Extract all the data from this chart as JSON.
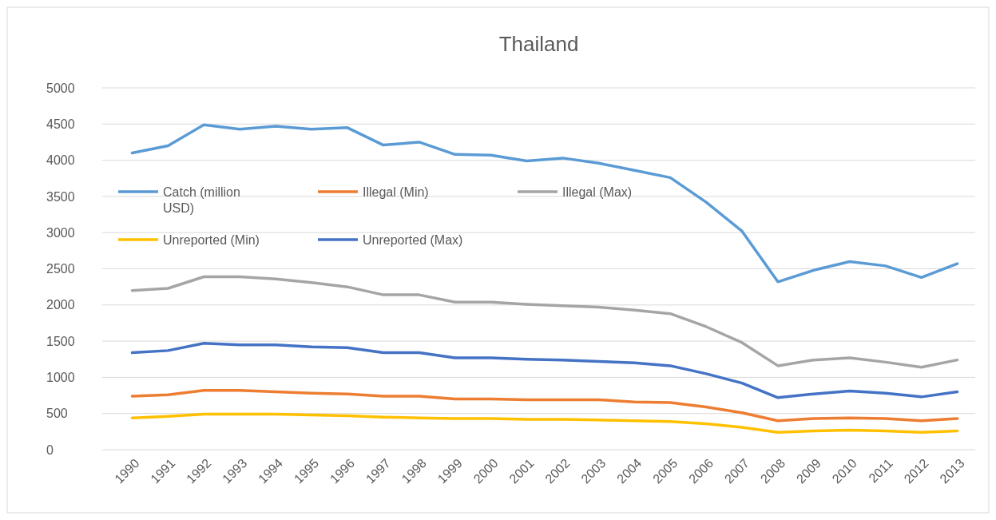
{
  "chart_data": {
    "type": "line",
    "title": "Thailand",
    "categories": [
      "1990",
      "1991",
      "1992",
      "1993",
      "1994",
      "1995",
      "1996",
      "1997",
      "1998",
      "1999",
      "2000",
      "2001",
      "2002",
      "2003",
      "2004",
      "2005",
      "2006",
      "2007",
      "2008",
      "2009",
      "2010",
      "2011",
      "2012",
      "2013"
    ],
    "series": [
      {
        "name": "Catch (million USD)",
        "color": "#5b9bd5",
        "values": [
          4100,
          4200,
          4490,
          4430,
          4470,
          4430,
          4450,
          4210,
          4250,
          4080,
          4070,
          3990,
          4030,
          3960,
          3860,
          3760,
          3420,
          3020,
          2320,
          2480,
          2600,
          2540,
          2380,
          2570
        ]
      },
      {
        "name": "Illegal (Min)",
        "color": "#ed7d31",
        "values": [
          740,
          760,
          820,
          820,
          800,
          780,
          770,
          740,
          740,
          700,
          700,
          690,
          690,
          690,
          660,
          650,
          590,
          510,
          400,
          430,
          440,
          430,
          400,
          430
        ]
      },
      {
        "name": "Illegal (Max)",
        "color": "#a5a5a5",
        "values": [
          2200,
          2230,
          2390,
          2390,
          2360,
          2310,
          2250,
          2140,
          2140,
          2040,
          2040,
          2010,
          1990,
          1970,
          1930,
          1880,
          1700,
          1480,
          1160,
          1240,
          1270,
          1210,
          1140,
          1240
        ]
      },
      {
        "name": "Unreported (Min)",
        "color": "#ffc000",
        "values": [
          440,
          460,
          490,
          490,
          490,
          480,
          470,
          450,
          440,
          430,
          430,
          420,
          420,
          410,
          400,
          390,
          360,
          310,
          240,
          260,
          270,
          260,
          240,
          260
        ]
      },
      {
        "name": "Unreported (Max)",
        "color": "#4472c4",
        "values": [
          1340,
          1370,
          1470,
          1450,
          1450,
          1420,
          1410,
          1340,
          1340,
          1270,
          1270,
          1250,
          1240,
          1220,
          1200,
          1160,
          1050,
          920,
          720,
          770,
          810,
          780,
          730,
          800
        ]
      }
    ],
    "ylim": [
      0,
      5000
    ],
    "yticks": [
      0,
      500,
      1000,
      1500,
      2000,
      2500,
      3000,
      3500,
      4000,
      4500,
      5000
    ],
    "grid": "y",
    "legend": "left",
    "marker": "none",
    "line_style": "solid"
  }
}
